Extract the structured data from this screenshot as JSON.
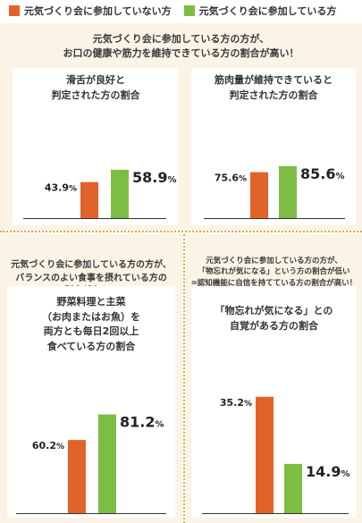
{
  "legend": [
    {
      "label": "元気づくり会に参加していない方",
      "color": "#e2632a"
    },
    {
      "label": "元気づくり会に参加している方",
      "color": "#7dbd44"
    }
  ],
  "panel_top": {
    "heading": "元気づくり会に参加している方の方が、\nお口の健康や筋力を維持できている方の割合が高い！"
  },
  "panel_left": {
    "heading": "元気づくり会に参加している方の方が、\nバランスのよい食事を摂れている方の\n割合が高い！"
  },
  "panel_right": {
    "heading": "元気づくり会に参加している方の方が、\n「物忘れが気になる」という方の割合が低い\n=認知機能に自信を持てている方の割合が高い！"
  },
  "chart_data": [
    {
      "type": "bar",
      "title": "滑舌が良好と\n判定された方の割合",
      "categories": [
        "元気づくり会に参加していない方",
        "元気づくり会に参加している方"
      ],
      "values": [
        43.9,
        58.9
      ],
      "labels": [
        "43.9%",
        "58.9%"
      ],
      "colors": [
        "#e2632a",
        "#7dbd44"
      ],
      "ylim": [
        0,
        100
      ]
    },
    {
      "type": "bar",
      "title": "筋肉量が維持できていると\n判定された方の割合",
      "categories": [
        "元気づくり会に参加していない方",
        "元気づくり会に参加している方"
      ],
      "values": [
        75.6,
        85.6
      ],
      "labels": [
        "75.6%",
        "85.6%"
      ],
      "colors": [
        "#e2632a",
        "#7dbd44"
      ],
      "ylim": [
        0,
        100
      ]
    },
    {
      "type": "bar",
      "title": "野菜料理と主菜\n（お肉またはお魚）を\n両方とも毎日2回以上\n食べている方の割合",
      "categories": [
        "元気づくり会に参加していない方",
        "元気づくり会に参加している方"
      ],
      "values": [
        60.2,
        81.2
      ],
      "labels": [
        "60.2%",
        "81.2%"
      ],
      "colors": [
        "#e2632a",
        "#7dbd44"
      ],
      "ylim": [
        0,
        100
      ]
    },
    {
      "type": "bar",
      "title": "「物忘れが気になる」との\n自覚がある方の割合",
      "categories": [
        "元気づくり会に参加していない方",
        "元気づくり会に参加している方"
      ],
      "values": [
        35.2,
        14.9
      ],
      "labels": [
        "35.2%",
        "14.9%"
      ],
      "colors": [
        "#e2632a",
        "#7dbd44"
      ],
      "ylim": [
        0,
        40
      ]
    }
  ]
}
